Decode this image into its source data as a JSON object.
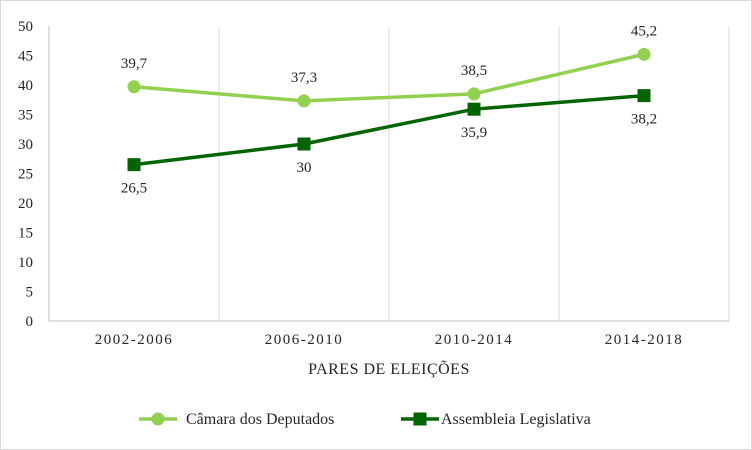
{
  "chart_data": {
    "type": "line",
    "title": "",
    "xlabel": "PARES DE ELEIÇÕES",
    "ylabel": "",
    "categories": [
      "2002-2006",
      "2006-2010",
      "2010-2014",
      "2014-2018"
    ],
    "ylim": [
      0,
      50
    ],
    "yticks": [
      "0",
      "5",
      "10",
      "15",
      "20",
      "25",
      "30",
      "35",
      "40",
      "45",
      "50"
    ],
    "grid": "vertical",
    "legend_position": "bottom",
    "series": [
      {
        "name": "Câmara dos Deputados",
        "values": [
          39.7,
          37.3,
          38.5,
          45.2
        ],
        "labels": [
          "39,7",
          "37,3",
          "38,5",
          "45,2"
        ],
        "color": "#92d050",
        "marker": "circle"
      },
      {
        "name": "Assembleia Legislativa",
        "values": [
          26.5,
          30,
          35.9,
          38.2
        ],
        "labels": [
          "26,5",
          "30",
          "35,9",
          "38,2"
        ],
        "color": "#006400",
        "marker": "square"
      }
    ]
  }
}
